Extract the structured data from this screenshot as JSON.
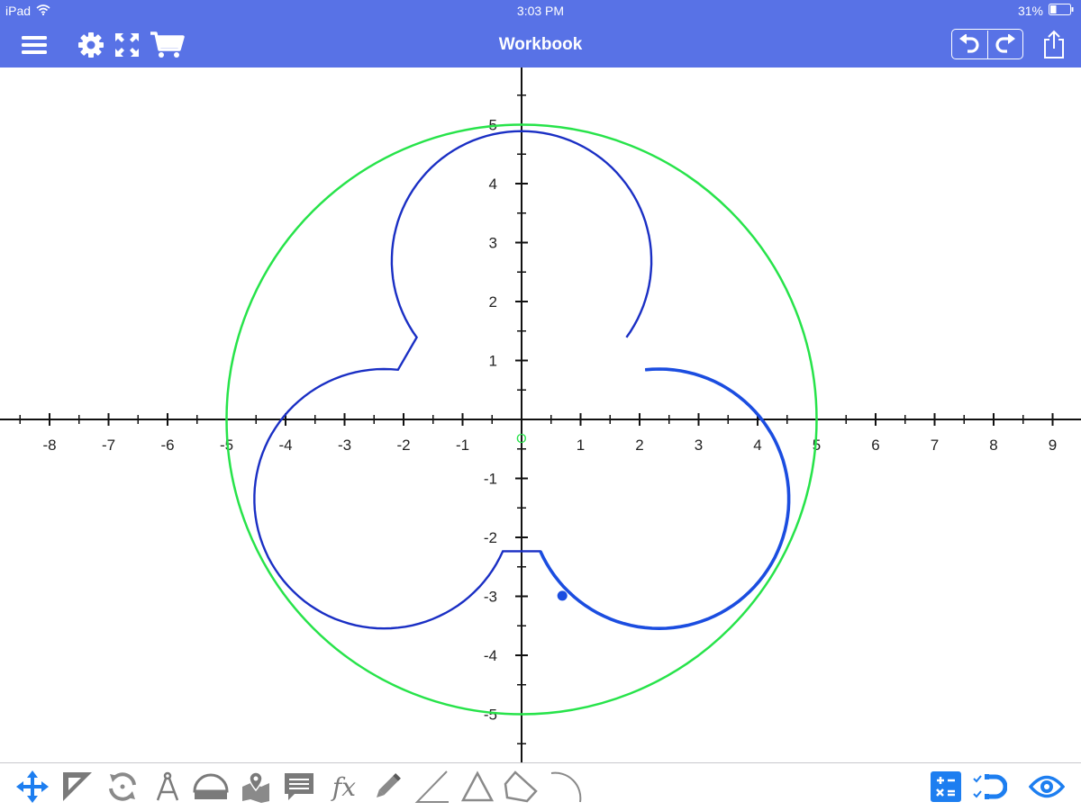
{
  "status_bar": {
    "device": "iPad",
    "time": "3:03 PM",
    "battery": "31%",
    "battery_level": 0.31
  },
  "nav": {
    "title": "Workbook",
    "left_icons": [
      "menu-icon",
      "gear-icon",
      "fullscreen-icon",
      "cart-icon"
    ],
    "right_icons": [
      "undo-icon",
      "redo-icon",
      "share-icon"
    ]
  },
  "graph": {
    "x_axis": {
      "min": -8,
      "max": 9,
      "labels": [
        "-8",
        "-7",
        "-6",
        "-5",
        "-4",
        "-3",
        "-2",
        "-1",
        "1",
        "2",
        "3",
        "4",
        "5",
        "6",
        "7",
        "8",
        "9"
      ]
    },
    "y_axis": {
      "min": -5,
      "max": 5,
      "labels": [
        "5",
        "4",
        "3",
        "2",
        "1",
        "-1",
        "-2",
        "-3",
        "-4",
        "-5"
      ]
    },
    "origin_label": "O",
    "outer_circle": {
      "center": [
        0,
        0
      ],
      "radius": 5,
      "color": "#27e34a"
    },
    "curve_color": "#1a2fc4",
    "highlight_color": "#1b4de0",
    "point": {
      "x": 0.69,
      "y": -2.99
    }
  },
  "toolbar": {
    "left_tools": [
      "move-icon",
      "set-square-icon",
      "rotate-icon",
      "compass-icon",
      "protractor-icon",
      "map-icon",
      "comment-icon",
      "function-icon",
      "pencil-icon",
      "angle-icon",
      "triangle-icon",
      "quadrilateral-icon",
      "arc-icon"
    ],
    "function_label": "fx",
    "right_tools": [
      "calculator-icon",
      "snap-icon",
      "visibility-icon"
    ],
    "accent": "#1d7ef0",
    "inactive": "#8a8a8a"
  }
}
